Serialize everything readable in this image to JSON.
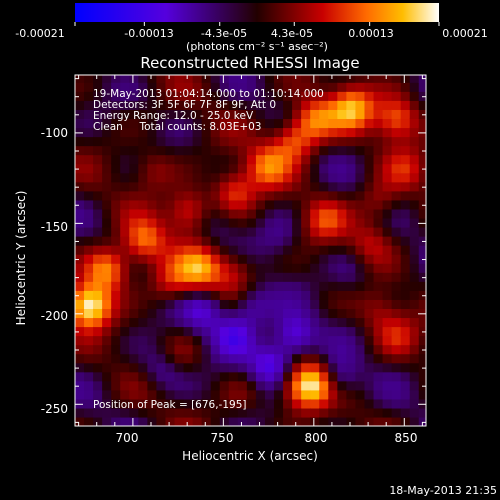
{
  "chart_data": {
    "type": "heatmap",
    "title": "Reconstructed RHESSI Image",
    "xlabel": "Heliocentric X (arcsec)",
    "ylabel": "Heliocentric Y (arcsec)",
    "xlim": [
      668,
      862
    ],
    "ylim": [
      -262,
      -68
    ],
    "x_ticks": [
      700,
      750,
      800,
      850
    ],
    "y_ticks": [
      -100,
      -150,
      -200,
      -250
    ],
    "colorbar": {
      "ticks": [
        "-0.00021",
        "-0.00013",
        "-4.3e-05",
        "4.3e-05",
        "0.00013",
        "0.00021"
      ],
      "tick_values": [
        -0.00021,
        -0.00013,
        -4.3e-05,
        4.3e-05,
        0.00013,
        0.00021
      ],
      "min": -0.00021,
      "max": 0.00021,
      "unit_label": "(photons cm⁻² s⁻¹ asec⁻²)"
    },
    "annotations": [
      "19-May-2013 01:04:14.000 to 01:10:14.000",
      "Detectors: 3F 5F 6F 7F 8F 9F, Att 0",
      "Energy Range: 12.0 - 25.0 keV",
      "Clean     Total counts: 8.03E+03"
    ],
    "peak_label": "Position of Peak = [676,-195]",
    "peak_position": [
      676,
      -195
    ],
    "features": [
      {
        "x": 676,
        "y": -195,
        "value": 0.00021
      },
      {
        "x": 686,
        "y": -175,
        "value": 0.00015
      },
      {
        "x": 706,
        "y": -160,
        "value": 0.00012
      },
      {
        "x": 731,
        "y": -143,
        "value": 0.00011
      },
      {
        "x": 756,
        "y": -132,
        "value": 0.0001
      },
      {
        "x": 774,
        "y": -118,
        "value": 0.00011
      },
      {
        "x": 789,
        "y": -104,
        "value": 0.00012
      },
      {
        "x": 801,
        "y": -92,
        "value": 0.00013
      },
      {
        "x": 821,
        "y": -86,
        "value": 0.00015
      },
      {
        "x": 846,
        "y": -92,
        "value": 0.00012
      },
      {
        "x": 806,
        "y": -148,
        "value": 8e-05
      },
      {
        "x": 836,
        "y": -138,
        "value": 7e-05
      },
      {
        "x": 737,
        "y": -175,
        "value": 0.00013
      },
      {
        "x": 721,
        "y": -182,
        "value": 8e-05
      },
      {
        "x": 756,
        "y": -176,
        "value": 7e-05
      },
      {
        "x": 711,
        "y": -120,
        "value": 6e-05
      },
      {
        "x": 801,
        "y": -238,
        "value": 0.00018
      },
      {
        "x": 791,
        "y": -242,
        "value": 8e-05
      },
      {
        "x": 726,
        "y": -222,
        "value": 4e-05
      },
      {
        "x": 846,
        "y": -212,
        "value": 6e-05
      },
      {
        "x": 836,
        "y": -198,
        "value": 5e-05
      },
      {
        "x": 831,
        "y": -160,
        "value": 6e-05
      },
      {
        "x": 851,
        "y": -120,
        "value": 6e-05
      },
      {
        "x": 761,
        "y": -244,
        "value": 3e-05
      },
      {
        "x": 789,
        "y": -212,
        "value": -0.00012
      },
      {
        "x": 776,
        "y": -228,
        "value": -0.00013
      },
      {
        "x": 756,
        "y": -212,
        "value": -0.0001
      },
      {
        "x": 739,
        "y": -198,
        "value": -9e-05
      },
      {
        "x": 766,
        "y": -196,
        "value": -8e-05
      },
      {
        "x": 811,
        "y": -236,
        "value": -0.00011
      },
      {
        "x": 781,
        "y": -158,
        "value": -4e-05
      },
      {
        "x": 746,
        "y": -150,
        "value": -3e-05
      },
      {
        "x": 716,
        "y": -230,
        "value": -6e-05
      },
      {
        "x": 821,
        "y": -178,
        "value": -4e-05
      }
    ]
  },
  "footer": {
    "timestamp": "18-May-2013 21:35"
  }
}
